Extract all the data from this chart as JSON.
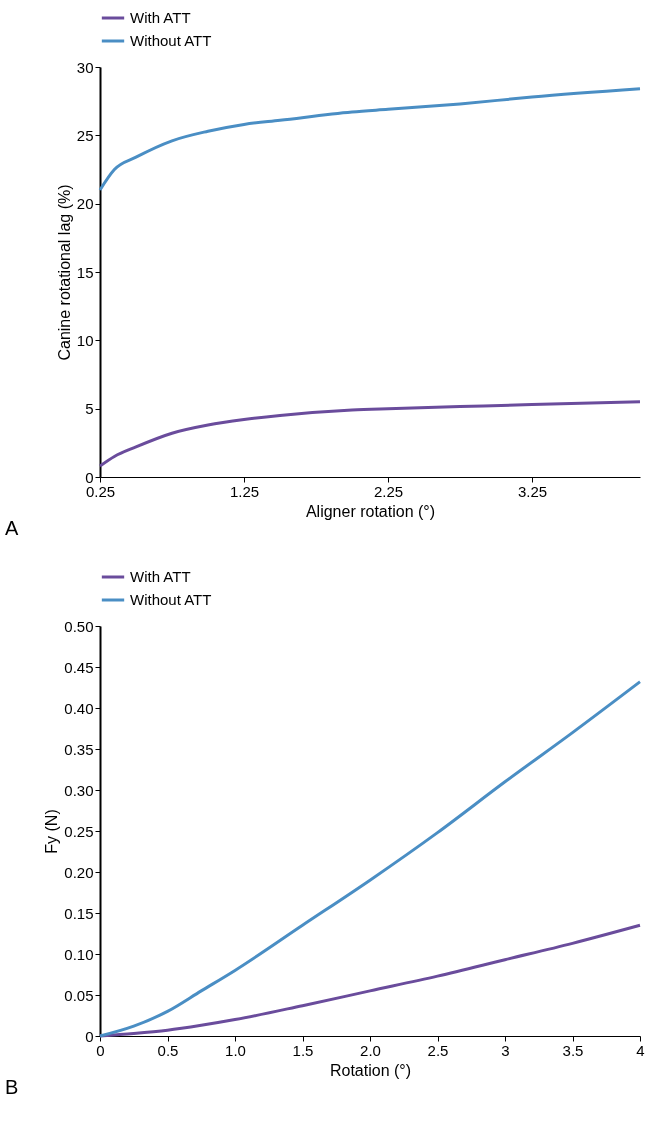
{
  "chart_data": [
    {
      "type": "line",
      "xlabel": "Aligner rotation (°)",
      "ylabel": "Canine rotational lag (%)",
      "annotations": [
        "A"
      ],
      "xlim": [
        0.25,
        4.0
      ],
      "xticks": [
        0.25,
        1.25,
        2.25,
        3.25
      ],
      "ylim": [
        0,
        30
      ],
      "yticks": [
        0,
        5,
        10,
        15,
        20,
        25,
        30
      ],
      "grid": false,
      "legend": "top left",
      "marker": "none",
      "line_style": "solid",
      "x": [
        0.25,
        0.35,
        0.5,
        0.75,
        1.0,
        1.25,
        1.5,
        2.0,
        2.25,
        2.75,
        3.25,
        4.0
      ],
      "series": [
        {
          "name": "With ATT",
          "color": "#6a4c9c",
          "values": [
            0.8,
            1.5,
            2.2,
            3.2,
            3.8,
            4.2,
            4.5,
            4.9,
            5.0,
            5.15,
            5.3,
            5.5
          ]
        },
        {
          "name": "Without ATT",
          "color": "#4a8ec4",
          "values": [
            21.0,
            22.5,
            23.4,
            24.6,
            25.3,
            25.8,
            26.1,
            26.7,
            26.9,
            27.3,
            27.8,
            28.4
          ]
        }
      ]
    },
    {
      "type": "line",
      "xlabel": "Rotation (°)",
      "ylabel": "Fy (N)",
      "annotations": [
        "B"
      ],
      "xlim": [
        0,
        4
      ],
      "xticks": [
        0,
        0.5,
        {
          "value": 1,
          "label": "1.0"
        },
        1.5,
        {
          "value": 2,
          "label": "2.0"
        },
        2.5,
        3,
        3.5,
        4
      ],
      "ylim": [
        0,
        0.5
      ],
      "yticks": [
        0,
        0.05,
        {
          "value": 0.1,
          "label": "0.10"
        },
        0.15,
        {
          "value": 0.2,
          "label": "0.20"
        },
        0.25,
        {
          "value": 0.3,
          "label": "0.30"
        },
        0.35,
        {
          "value": 0.4,
          "label": "0.40"
        },
        0.45,
        {
          "value": 0.5,
          "label": "0.50"
        }
      ],
      "grid": false,
      "legend": "top left",
      "marker": "none",
      "line_style": "solid",
      "x": [
        0,
        0.25,
        0.5,
        0.75,
        1.0,
        1.5,
        2.0,
        2.5,
        3.0,
        3.5,
        4.0
      ],
      "series": [
        {
          "name": "With ATT",
          "color": "#6a4c9c",
          "values": [
            0,
            0.003,
            0.007,
            0.013,
            0.02,
            0.037,
            0.055,
            0.073,
            0.093,
            0.113,
            0.135
          ]
        },
        {
          "name": "Without ATT",
          "color": "#4a8ec4",
          "values": [
            0,
            0.012,
            0.03,
            0.055,
            0.08,
            0.135,
            0.19,
            0.248,
            0.31,
            0.37,
            0.432
          ]
        }
      ]
    }
  ]
}
